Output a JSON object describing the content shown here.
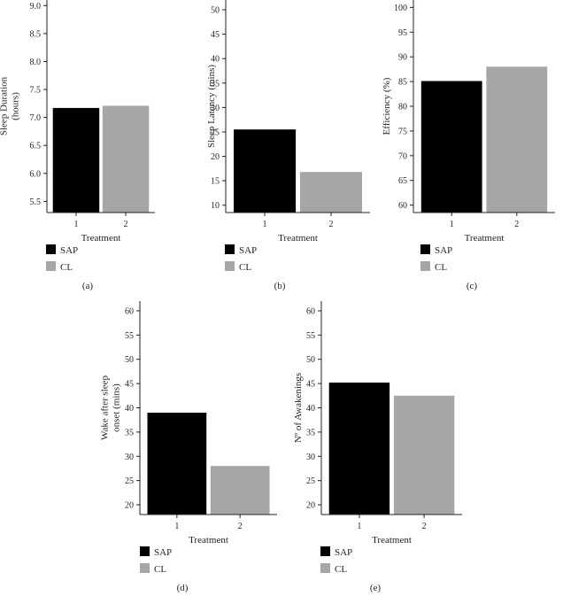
{
  "colors": {
    "SAP": "#000000",
    "CL": "#a6a6a6",
    "axis": "#231f20"
  },
  "chart_data": [
    {
      "type": "bar",
      "panel_label": "(a)",
      "categories": [
        "1",
        "2"
      ],
      "series": [
        {
          "name": "SAP",
          "value": 7.17
        },
        {
          "name": "CL",
          "value": 7.21
        }
      ],
      "xlabel": "Treatment",
      "ylabel": [
        "Sleep Duration",
        "(hours)"
      ],
      "ylim": [
        5.3,
        9.1
      ],
      "yticks": [
        "5.5",
        "6.0",
        "6.5",
        "7.0",
        "7.5",
        "8.0",
        "8.5",
        "9.0"
      ],
      "legend": [
        "SAP",
        "CL"
      ]
    },
    {
      "type": "bar",
      "panel_label": "(b)",
      "categories": [
        "1",
        "2"
      ],
      "series": [
        {
          "name": "SAP",
          "value": 25.5
        },
        {
          "name": "CL",
          "value": 16.8
        }
      ],
      "xlabel": "Treatment",
      "ylabel": [
        "Sleep Latency (mins)"
      ],
      "ylim": [
        8.5,
        52
      ],
      "yticks": [
        "10",
        "15",
        "20",
        "25",
        "30",
        "35",
        "40",
        "45",
        "50"
      ],
      "legend": [
        "SAP",
        "CL"
      ]
    },
    {
      "type": "bar",
      "panel_label": "(c)",
      "categories": [
        "1",
        "2"
      ],
      "series": [
        {
          "name": "SAP",
          "value": 85.1
        },
        {
          "name": "CL",
          "value": 88.0
        }
      ],
      "xlabel": "Treatment",
      "ylabel": [
        "Efficiency (%)"
      ],
      "ylim": [
        58.5,
        101.5
      ],
      "yticks": [
        "60",
        "65",
        "70",
        "75",
        "80",
        "85",
        "90",
        "95",
        "100"
      ],
      "legend": [
        "SAP",
        "CL"
      ]
    },
    {
      "type": "bar",
      "panel_label": "(d)",
      "categories": [
        "1",
        "2"
      ],
      "series": [
        {
          "name": "SAP",
          "value": 39.0
        },
        {
          "name": "CL",
          "value": 28.0
        }
      ],
      "xlabel": "Treatment",
      "ylabel": [
        "Wake after sleep",
        "onset (mins)"
      ],
      "ylim": [
        18,
        62
      ],
      "yticks": [
        "20",
        "25",
        "30",
        "35",
        "40",
        "45",
        "50",
        "55",
        "60"
      ],
      "legend": [
        "SAP",
        "CL"
      ]
    },
    {
      "type": "bar",
      "panel_label": "(e)",
      "categories": [
        "1",
        "2"
      ],
      "series": [
        {
          "name": "SAP",
          "value": 45.2
        },
        {
          "name": "CL",
          "value": 42.5
        }
      ],
      "xlabel": "Treatment",
      "ylabel": [
        "Nº of Awakenings"
      ],
      "ylim": [
        18,
        62
      ],
      "yticks": [
        "20",
        "25",
        "30",
        "35",
        "40",
        "45",
        "50",
        "55",
        "60"
      ],
      "legend": [
        "SAP",
        "CL"
      ]
    }
  ]
}
